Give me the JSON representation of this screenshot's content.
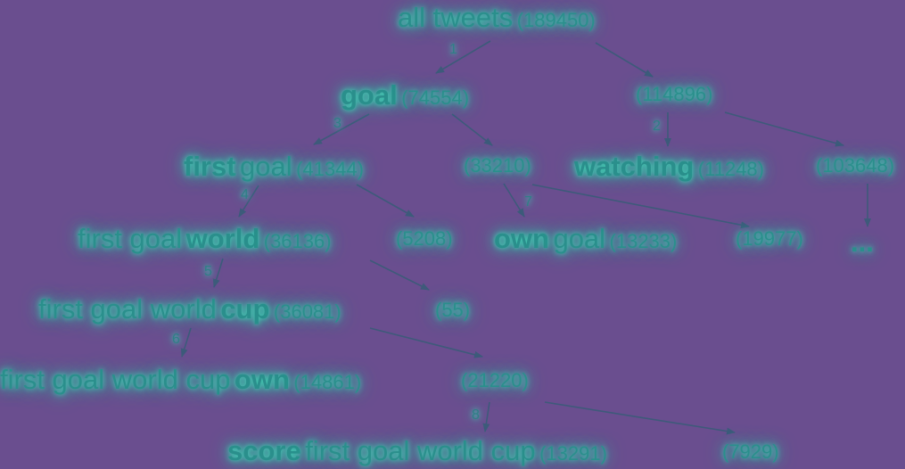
{
  "nodes": {
    "all": {
      "pre": "all tweets",
      "count": "(189450)"
    },
    "n1": {
      "bold": "goal",
      "count": "(74554)"
    },
    "n2": {
      "count": "(114896)"
    },
    "n3": {
      "bold": "first",
      "post": "goal",
      "count": "(41344)"
    },
    "n4": {
      "count": "(33210)"
    },
    "n5": {
      "bold": "watching",
      "count": "(11248)"
    },
    "n6": {
      "count": "(103648)"
    },
    "n7": {
      "pre": "first goal",
      "bold": "world",
      "count": "(36136)"
    },
    "n8": {
      "count": "(5208)"
    },
    "n9": {
      "bold": "own",
      "post": "goal",
      "count": "(13233)"
    },
    "n10": {
      "count": "(19977)"
    },
    "n11": {
      "text": "..."
    },
    "n12": {
      "pre": "first goal world",
      "bold": "cup",
      "count": "(36081)"
    },
    "n13": {
      "count": "(55)"
    },
    "n14": {
      "pre": "first goal world cup",
      "bold": "own",
      "count": "(14861)"
    },
    "n15": {
      "count": "(21220)"
    },
    "n16": {
      "bold": "score",
      "post": "first goal world cup",
      "count": "(13291)"
    },
    "n17": {
      "count": "(7929)"
    }
  },
  "step_labels": {
    "s1": "1",
    "s2": "2",
    "s3": "3",
    "s4": "4",
    "s5": "5",
    "s6": "6",
    "s7": "7",
    "s8": "8"
  },
  "colors": {
    "background": "#6a4e8f",
    "text": "#2a8f8c",
    "glow": "#3fd6b6",
    "arrow": "#3e5a7a"
  }
}
